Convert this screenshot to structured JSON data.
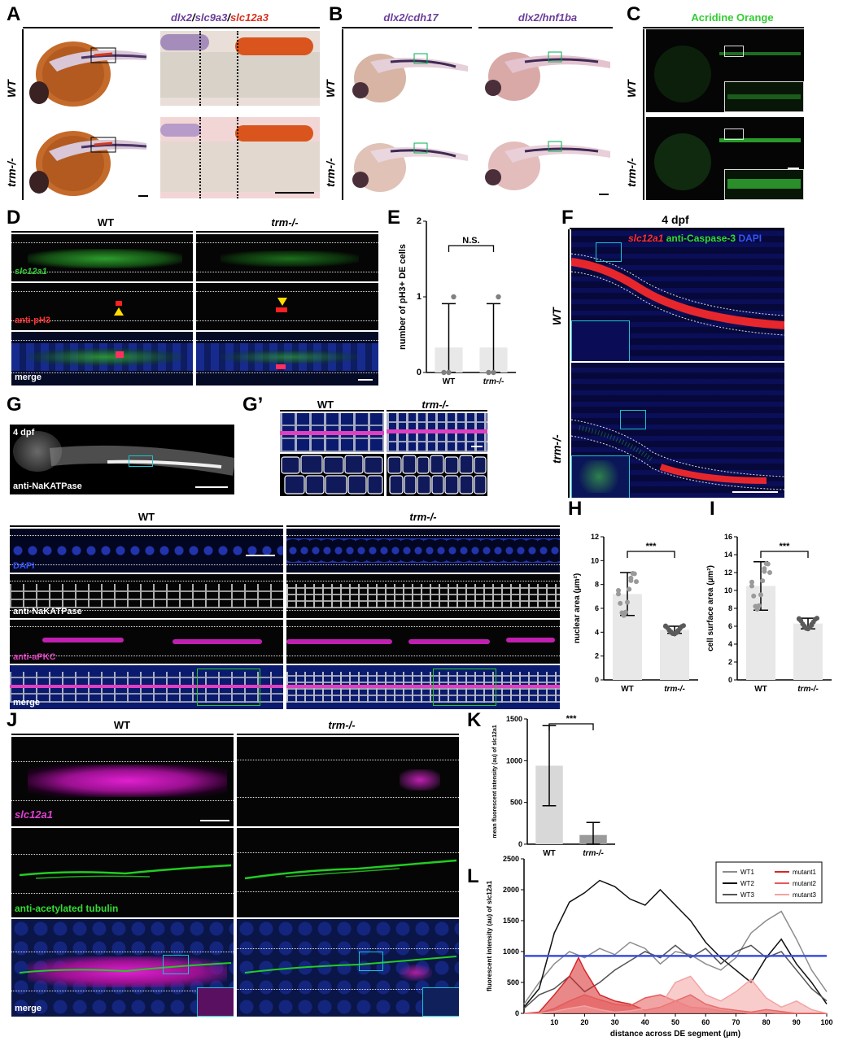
{
  "panels": {
    "A": {
      "letter": "A",
      "header_parts": [
        "dlx2",
        "/",
        "slc9a3",
        "/",
        "slc12a3"
      ],
      "header_colors": [
        "#6a3d9a",
        "#333",
        "#6a3d9a",
        "#333",
        "#d7301f"
      ],
      "rows": [
        "WT",
        "trm-/-"
      ]
    },
    "B": {
      "letter": "B",
      "headers": [
        "dlx2/cdh17",
        "dlx2/hnf1ba"
      ],
      "rows": [
        "WT",
        "trm-/-"
      ]
    },
    "C": {
      "letter": "C",
      "header": "Acridine Orange",
      "rows": [
        "WT",
        "trm-/-"
      ]
    },
    "D": {
      "letter": "D",
      "cols": [
        "WT",
        "trm-/-"
      ],
      "rows": [
        "slc12a1",
        "anti-pH3",
        "merge"
      ]
    },
    "E": {
      "letter": "E"
    },
    "F": {
      "letter": "F",
      "stage": "4 dpf",
      "legend_parts": [
        "slc12a1",
        " anti-Caspase-3 ",
        "DAPI"
      ],
      "rows": [
        "WT",
        "trm-/-"
      ]
    },
    "G": {
      "letter": "G",
      "stage": "4 dpf",
      "stain": "anti-NaKATPase",
      "cols": [
        "WT",
        "trm-/-"
      ],
      "rows": [
        "DAPI",
        "anti-NaKATPase",
        "anti-aPKC",
        "merge"
      ]
    },
    "Gp": {
      "letter": "G’",
      "cols": [
        "WT",
        "trm-/-"
      ]
    },
    "H": {
      "letter": "H"
    },
    "I": {
      "letter": "I"
    },
    "J": {
      "letter": "J",
      "cols": [
        "WT",
        "trm-/-"
      ],
      "rows": [
        "slc12a1",
        "anti-acetylated tubulin",
        "merge"
      ]
    },
    "K": {
      "letter": "K"
    },
    "L": {
      "letter": "L"
    }
  },
  "chart_data": [
    {
      "id": "E",
      "type": "bar",
      "categories": [
        "WT",
        "trm-/-"
      ],
      "values": [
        0.33,
        0.33
      ],
      "error": [
        0.58,
        0.58
      ],
      "points": [
        [
          0,
          0,
          1
        ],
        [
          0,
          0,
          1
        ]
      ],
      "ylabel": "number of pH3+ DE cells",
      "ylim": [
        0,
        2
      ],
      "yticks": [
        0,
        1,
        2
      ],
      "significance": "N.S."
    },
    {
      "id": "H",
      "type": "bar",
      "categories": [
        "WT",
        "trm-/-"
      ],
      "values": [
        7.2,
        4.2
      ],
      "error": [
        1.8,
        0.3
      ],
      "ylabel": "nuclear area (µm²)",
      "ylim": [
        0,
        12
      ],
      "yticks": [
        0,
        2,
        4,
        6,
        8,
        10,
        12
      ],
      "significance": "***"
    },
    {
      "id": "I",
      "type": "bar",
      "categories": [
        "WT",
        "trm-/-"
      ],
      "values": [
        10.5,
        6.3
      ],
      "error": [
        2.7,
        0.6
      ],
      "ylabel": "cell surface area (µm²)",
      "ylim": [
        0,
        16
      ],
      "yticks": [
        0,
        2,
        4,
        6,
        8,
        10,
        12,
        14,
        16
      ],
      "significance": "***"
    },
    {
      "id": "K",
      "type": "bar",
      "categories": [
        "WT",
        "trm-/-"
      ],
      "values": [
        940,
        110
      ],
      "error": [
        480,
        150
      ],
      "ylabel": "mean fluorescent intensity (au) of slc12a1",
      "ylim": [
        0,
        1500
      ],
      "yticks": [
        0,
        500,
        1000,
        1500
      ],
      "significance": "***"
    },
    {
      "id": "L",
      "type": "line",
      "xlabel": "distance across DE segment (µm)",
      "ylabel": "fluorescent intensity (au) of slc12a1",
      "xlim": [
        0,
        100
      ],
      "ylim": [
        0,
        2500
      ],
      "xticks": [
        10,
        20,
        30,
        40,
        50,
        60,
        70,
        80,
        90,
        100
      ],
      "yticks": [
        0,
        500,
        1000,
        1500,
        2000,
        2500
      ],
      "threshold": 930,
      "legend": [
        "WT1",
        "WT2",
        "WT3",
        "mutant1",
        "mutant2",
        "mutant3"
      ],
      "series": [
        {
          "name": "WT1",
          "color": "#8c8c8c",
          "x": [
            0,
            5,
            10,
            15,
            20,
            25,
            30,
            35,
            40,
            45,
            50,
            55,
            60,
            65,
            70,
            75,
            80,
            85,
            90,
            95,
            100
          ],
          "y": [
            150,
            500,
            800,
            1000,
            900,
            1050,
            950,
            1150,
            1050,
            800,
            1000,
            950,
            800,
            700,
            900,
            1300,
            1500,
            1650,
            1200,
            700,
            350
          ]
        },
        {
          "name": "WT2",
          "color": "#111111",
          "x": [
            0,
            5,
            10,
            15,
            20,
            25,
            30,
            35,
            40,
            45,
            50,
            55,
            60,
            65,
            70,
            75,
            80,
            85,
            90,
            95,
            100
          ],
          "y": [
            100,
            400,
            1300,
            1800,
            1950,
            2150,
            2050,
            1850,
            1750,
            2000,
            1750,
            1500,
            1150,
            900,
            700,
            500,
            900,
            1200,
            800,
            500,
            150
          ]
        },
        {
          "name": "WT3",
          "color": "#555555",
          "x": [
            0,
            5,
            10,
            15,
            20,
            25,
            30,
            35,
            40,
            45,
            50,
            55,
            60,
            65,
            70,
            75,
            80,
            85,
            90,
            95,
            100
          ],
          "y": [
            80,
            300,
            400,
            600,
            350,
            500,
            700,
            850,
            1000,
            900,
            1100,
            900,
            1050,
            800,
            1000,
            1100,
            900,
            1000,
            700,
            400,
            200
          ]
        },
        {
          "name": "mutant1",
          "color": "#d62728",
          "x": [
            0,
            5,
            10,
            15,
            18,
            20,
            25,
            30,
            35,
            40,
            45,
            50,
            55,
            60,
            65,
            70,
            75,
            80,
            85,
            90,
            95,
            100
          ],
          "y": [
            0,
            20,
            300,
            600,
            900,
            700,
            300,
            200,
            150,
            50,
            100,
            200,
            300,
            150,
            80,
            50,
            20,
            60,
            30,
            0,
            0,
            0
          ]
        },
        {
          "name": "mutant2",
          "color": "#e45a5a",
          "x": [
            0,
            5,
            10,
            15,
            20,
            25,
            30,
            35,
            40,
            45,
            50,
            55,
            60,
            65,
            70,
            75,
            80,
            85,
            90,
            95,
            100
          ],
          "y": [
            0,
            0,
            80,
            200,
            300,
            220,
            150,
            120,
            250,
            300,
            200,
            100,
            80,
            40,
            20,
            0,
            10,
            0,
            0,
            0,
            0
          ]
        },
        {
          "name": "mutant3",
          "color": "#f4a3a3",
          "x": [
            0,
            5,
            10,
            15,
            20,
            25,
            30,
            35,
            40,
            45,
            50,
            55,
            60,
            65,
            70,
            75,
            80,
            85,
            90,
            95,
            100
          ],
          "y": [
            0,
            0,
            30,
            80,
            120,
            60,
            20,
            40,
            80,
            120,
            500,
            600,
            300,
            200,
            350,
            550,
            250,
            100,
            200,
            60,
            0
          ]
        }
      ]
    }
  ]
}
